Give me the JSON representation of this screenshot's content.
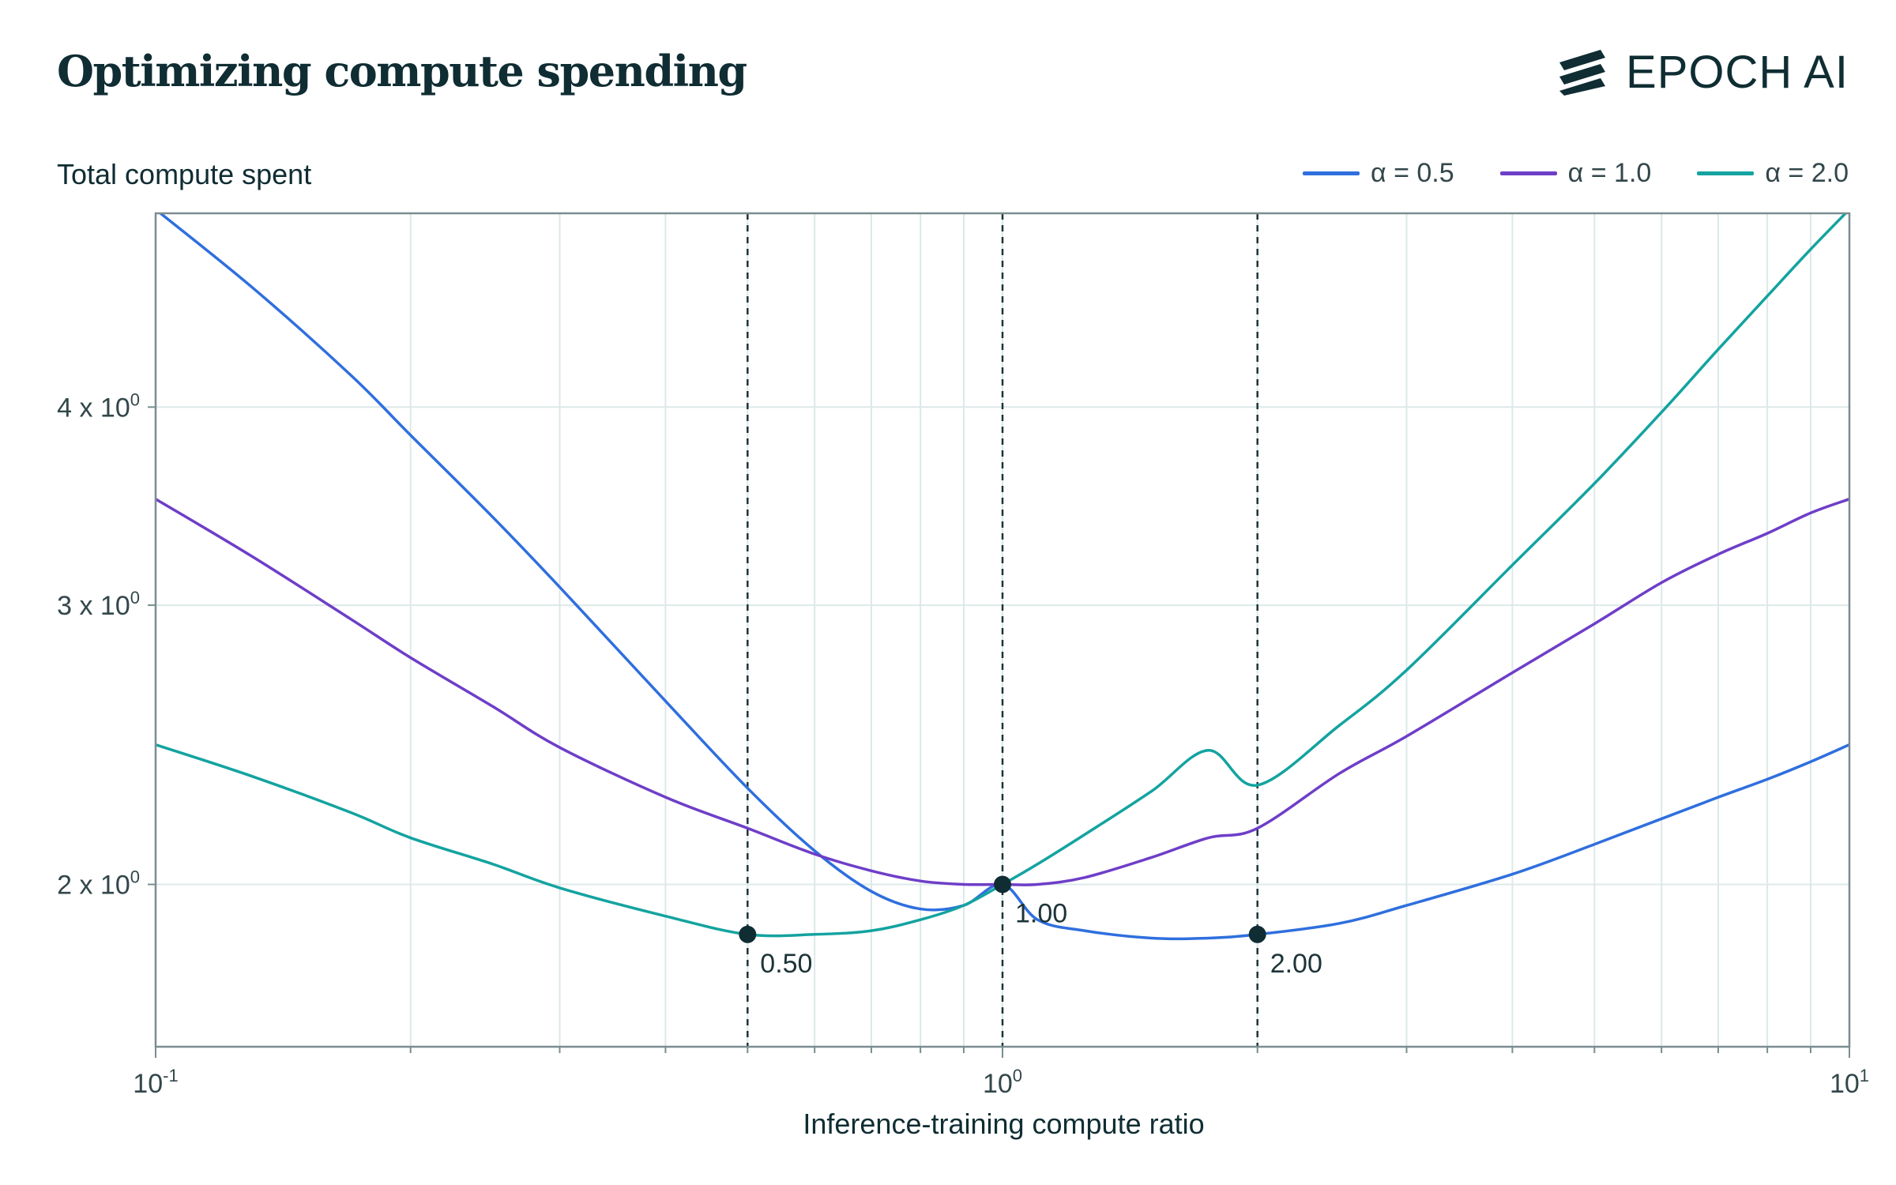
{
  "header": {
    "title": "Optimizing compute spending",
    "logo_text": "EPOCH AI"
  },
  "chart_data": {
    "type": "line",
    "title": "Optimizing compute spending",
    "xlabel": "Inference-training compute ratio",
    "ylabel": "Total compute spent",
    "xscale": "log",
    "yscale": "log",
    "xlim": [
      0.1,
      10
    ],
    "ylim": [
      1.58,
      5.3
    ],
    "grid": true,
    "legend_position": "top-right",
    "x_ticks": [
      {
        "value": 0.1,
        "base": "10",
        "exp": "-1"
      },
      {
        "value": 1,
        "base": "10",
        "exp": "0"
      },
      {
        "value": 10,
        "base": "10",
        "exp": "1"
      }
    ],
    "y_ticks": [
      {
        "value": 2,
        "label": "2 x 10",
        "exp": "0"
      },
      {
        "value": 3,
        "label": "3 x 10",
        "exp": "0"
      },
      {
        "value": 4,
        "label": "4 x 10",
        "exp": "0"
      }
    ],
    "x": [
      0.1,
      0.13,
      0.17,
      0.2,
      0.25,
      0.3,
      0.4,
      0.5,
      0.6,
      0.7,
      0.8,
      0.9,
      1.0,
      1.1,
      1.25,
      1.5,
      1.75,
      2.0,
      2.5,
      3,
      4,
      5,
      6,
      7,
      8,
      9,
      10
    ],
    "series": [
      {
        "name": "α = 0.5",
        "color": "#2f6fde",
        "values": [
          5.33,
          4.76,
          4.19,
          3.84,
          3.41,
          3.08,
          2.61,
          2.3,
          2.1,
          1.98,
          1.93,
          1.94,
          2.0,
          1.9,
          1.87,
          1.85,
          1.85,
          1.86,
          1.89,
          1.94,
          2.03,
          2.12,
          2.2,
          2.27,
          2.33,
          2.39,
          2.45
        ]
      },
      {
        "name": "α = 1.0",
        "color": "#6e3ec8",
        "values": [
          3.5,
          3.22,
          2.94,
          2.78,
          2.59,
          2.44,
          2.27,
          2.17,
          2.09,
          2.04,
          2.01,
          2.0,
          2.0,
          2.0,
          2.02,
          2.08,
          2.14,
          2.17,
          2.35,
          2.48,
          2.72,
          2.92,
          3.1,
          3.23,
          3.33,
          3.43,
          3.5
        ]
      },
      {
        "name": "α = 2.0",
        "color": "#13a3a0",
        "values": [
          2.45,
          2.34,
          2.22,
          2.14,
          2.06,
          1.99,
          1.91,
          1.86,
          1.86,
          1.87,
          1.9,
          1.94,
          2.0,
          2.06,
          2.15,
          2.29,
          2.43,
          2.31,
          2.52,
          2.73,
          3.18,
          3.58,
          3.97,
          4.35,
          4.7,
          5.03,
          5.33
        ]
      }
    ],
    "markers": [
      {
        "x": 0.5,
        "y": 1.86,
        "label": "0.50"
      },
      {
        "x": 1.0,
        "y": 2.0,
        "label": "1.00"
      },
      {
        "x": 2.0,
        "y": 1.86,
        "label": "2.00"
      }
    ],
    "colors": {
      "text": "#0f2d33",
      "grid": "#dde8e8",
      "axis": "#7a8d90",
      "marker": "#0f2d33"
    }
  }
}
